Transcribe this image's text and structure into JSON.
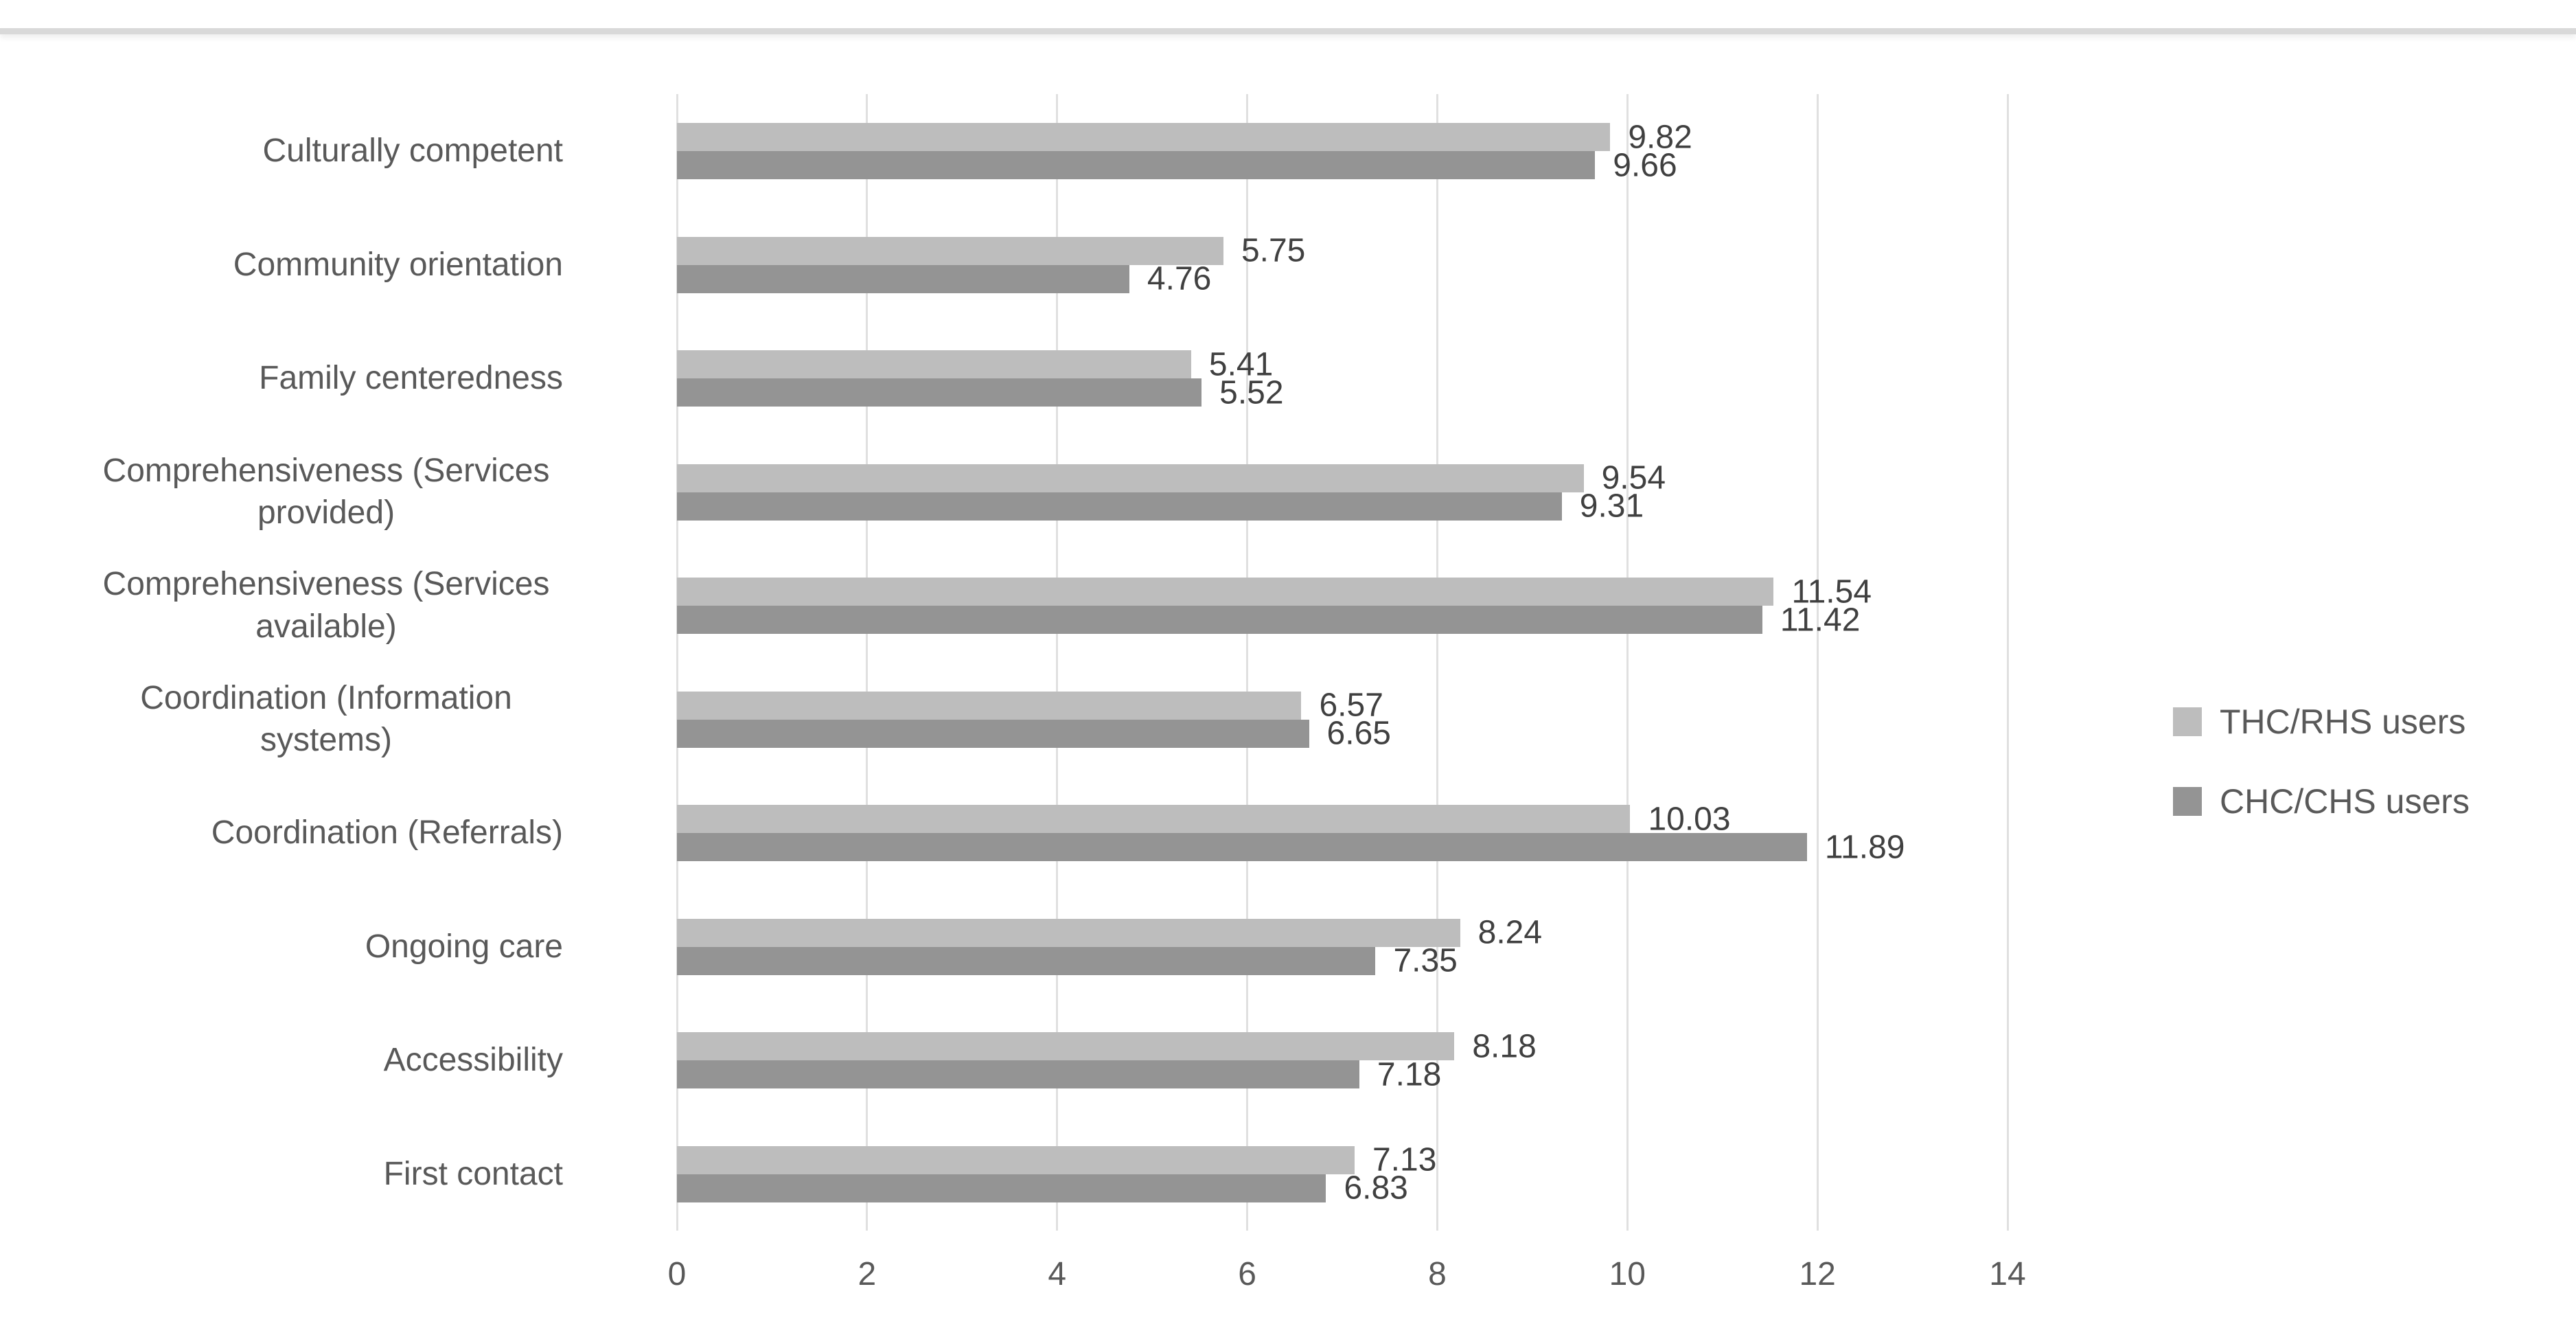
{
  "page": {
    "background": "#ffffff",
    "top_divider_color": "#d9d9d9"
  },
  "colors": {
    "series_light": "#bdbdbd",
    "series_dark": "#949494",
    "gridline": "#e0e0e0",
    "axis_text": "#595959",
    "value_text": "#404040"
  },
  "chart_data": {
    "type": "bar",
    "orientation": "horizontal",
    "title": "",
    "xlabel": "",
    "ylabel": "",
    "grid": "vertical",
    "legend_position": "right",
    "value_labels": "outside-end",
    "xlim": [
      0,
      14
    ],
    "x_ticks": [
      0,
      2,
      4,
      6,
      8,
      10,
      12,
      14
    ],
    "categories": [
      "Culturally competent",
      "Community orientation",
      "Family centeredness",
      "Comprehensiveness (Services provided)",
      "Comprehensiveness (Services available)",
      "Coordination (Information systems)",
      "Coordination (Referrals)",
      "Ongoing care",
      "Accessibility",
      "First contact"
    ],
    "series": [
      {
        "name": "THC/RHS users",
        "color": "#bdbdbd",
        "values": [
          9.82,
          5.75,
          5.41,
          9.54,
          11.54,
          6.57,
          10.03,
          8.24,
          8.18,
          7.13
        ]
      },
      {
        "name": "CHC/CHS users",
        "color": "#949494",
        "values": [
          9.66,
          4.76,
          5.52,
          9.31,
          11.42,
          6.65,
          11.89,
          7.35,
          7.18,
          6.83
        ]
      }
    ]
  }
}
